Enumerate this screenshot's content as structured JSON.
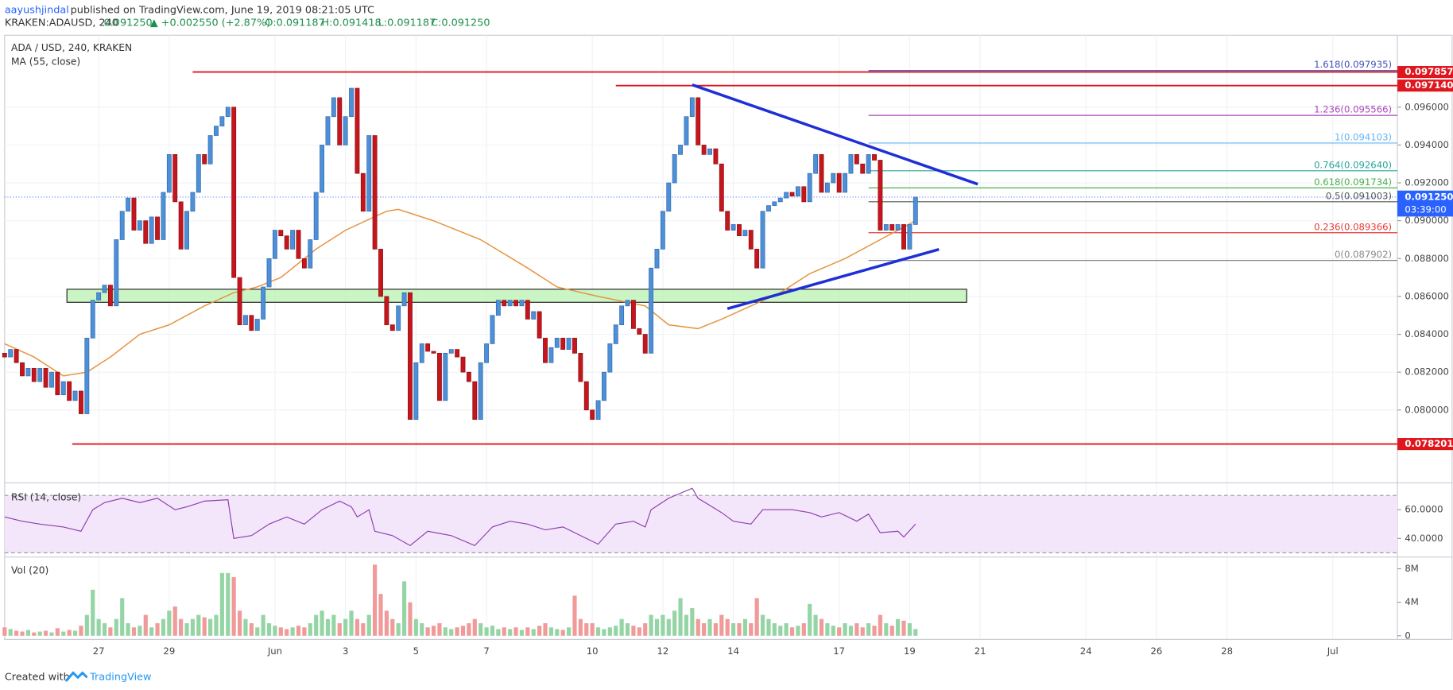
{
  "header": {
    "author": "aayushjindal",
    "published": "published on TradingView.com, June 19, 2019 08:21:05 UTC",
    "symbol": "KRAKEN:ADAUSD, 240",
    "price": "0.091250",
    "change": "▲ +0.002550 (+2.87%)",
    "open": "O:0.091187",
    "high": "H:0.091418",
    "low": "L:0.091187",
    "close": "C:0.091250"
  },
  "footer": {
    "created": "Created with",
    "brand": "TradingView"
  },
  "chart_data": {
    "type": "candlestick",
    "title": "ADA / USD, 240, KRAKEN",
    "up_color": "#4f8fd6",
    "down_color": "#c4161c",
    "x": [
      0,
      1,
      2,
      3,
      4,
      5,
      6,
      7,
      8,
      9,
      10,
      11,
      12,
      13,
      14,
      15,
      16,
      17,
      18,
      19,
      20,
      21,
      22,
      23,
      24,
      25,
      26,
      27,
      28,
      29,
      30,
      31,
      32,
      33,
      34,
      35,
      36,
      37,
      38,
      39,
      40,
      41,
      42,
      43,
      44,
      45,
      46,
      47,
      48,
      49,
      50,
      51,
      52,
      53,
      54,
      55,
      56,
      57,
      58,
      59,
      60,
      61,
      62,
      63,
      64,
      65,
      66,
      67,
      68,
      69,
      70,
      71,
      72,
      73,
      74,
      75,
      76,
      77,
      78,
      79,
      80,
      81,
      82,
      83,
      84,
      85,
      86,
      87,
      88,
      89,
      90,
      91,
      92,
      93,
      94,
      95,
      96,
      97,
      98,
      99,
      100,
      101,
      102,
      103,
      104,
      105,
      106,
      107,
      108,
      109,
      110,
      111,
      112,
      113,
      114,
      115,
      116,
      117,
      118,
      119,
      120,
      121,
      122,
      123,
      124,
      125,
      126,
      127,
      128,
      129,
      130,
      131,
      132,
      133,
      134,
      135,
      136,
      137,
      138,
      139,
      140,
      141,
      142,
      143,
      144,
      145,
      146,
      147,
      148,
      149,
      150,
      151,
      152,
      153,
      154,
      155
    ],
    "open": [
      0.083,
      0.0828,
      0.0832,
      0.0825,
      0.0818,
      0.0822,
      0.0815,
      0.0822,
      0.0812,
      0.082,
      0.0808,
      0.0815,
      0.0805,
      0.081,
      0.0798,
      0.0838,
      0.0858,
      0.0862,
      0.0866,
      0.0855,
      0.089,
      0.0905,
      0.0912,
      0.0895,
      0.09,
      0.0888,
      0.0902,
      0.089,
      0.0915,
      0.0935,
      0.091,
      0.0885,
      0.0905,
      0.0915,
      0.0935,
      0.093,
      0.0945,
      0.095,
      0.0955,
      0.096,
      0.087,
      0.0845,
      0.085,
      0.0842,
      0.0848,
      0.0865,
      0.088,
      0.0895,
      0.0892,
      0.0885,
      0.0895,
      0.088,
      0.0875,
      0.089,
      0.0915,
      0.094,
      0.0955,
      0.0965,
      0.094,
      0.0955,
      0.097,
      0.0925,
      0.0905,
      0.0945,
      0.0885,
      0.086,
      0.0845,
      0.0842,
      0.0855,
      0.0862,
      0.0795,
      0.0825,
      0.0835,
      0.0831,
      0.083,
      0.0805,
      0.083,
      0.0832,
      0.0828,
      0.082,
      0.0815,
      0.0795,
      0.0825,
      0.0835,
      0.085,
      0.0858,
      0.0855,
      0.0858,
      0.0855,
      0.0858,
      0.0848,
      0.0852,
      0.0838,
      0.0825,
      0.0833,
      0.0838,
      0.0832,
      0.0838,
      0.083,
      0.0815,
      0.08,
      0.0795,
      0.0805,
      0.082,
      0.0835,
      0.0845,
      0.0855,
      0.0858,
      0.0843,
      0.084,
      0.083,
      0.0875,
      0.0885,
      0.0905,
      0.092,
      0.0935,
      0.094,
      0.0955,
      0.0965,
      0.094,
      0.0935,
      0.0938,
      0.093,
      0.0905,
      0.0895,
      0.0898,
      0.0892,
      0.0895,
      0.0885,
      0.0875,
      0.0905,
      0.0908,
      0.091,
      0.0912,
      0.0915,
      0.0913,
      0.0918,
      0.091,
      0.0925,
      0.0935,
      0.0915,
      0.092,
      0.0925,
      0.0915,
      0.0925,
      0.0935,
      0.093,
      0.0925,
      0.0935,
      0.0932,
      0.0895,
      0.0898,
      0.0895,
      0.0898,
      0.0885,
      0.0898
    ],
    "close": [
      0.0828,
      0.0832,
      0.0825,
      0.0818,
      0.0822,
      0.0815,
      0.0822,
      0.0812,
      0.082,
      0.0808,
      0.0815,
      0.0805,
      0.081,
      0.0798,
      0.0838,
      0.0858,
      0.0862,
      0.0866,
      0.0855,
      0.089,
      0.0905,
      0.0912,
      0.0895,
      0.09,
      0.0888,
      0.0902,
      0.089,
      0.0915,
      0.0935,
      0.091,
      0.0885,
      0.0905,
      0.0915,
      0.0935,
      0.093,
      0.0945,
      0.095,
      0.0955,
      0.096,
      0.087,
      0.0845,
      0.085,
      0.0842,
      0.0848,
      0.0865,
      0.088,
      0.0895,
      0.0892,
      0.0885,
      0.0895,
      0.088,
      0.0875,
      0.089,
      0.0915,
      0.094,
      0.0955,
      0.0965,
      0.094,
      0.0955,
      0.097,
      0.0925,
      0.0905,
      0.0945,
      0.0885,
      0.086,
      0.0845,
      0.0842,
      0.0855,
      0.0862,
      0.0795,
      0.0825,
      0.0835,
      0.0831,
      0.083,
      0.0805,
      0.083,
      0.0832,
      0.0828,
      0.082,
      0.0815,
      0.0795,
      0.0825,
      0.0835,
      0.085,
      0.0858,
      0.0855,
      0.0858,
      0.0855,
      0.0858,
      0.0848,
      0.0852,
      0.0838,
      0.0825,
      0.0833,
      0.0838,
      0.0832,
      0.0838,
      0.083,
      0.0815,
      0.08,
      0.0795,
      0.0805,
      0.082,
      0.0835,
      0.0845,
      0.0855,
      0.0858,
      0.0843,
      0.084,
      0.083,
      0.0875,
      0.0885,
      0.0905,
      0.092,
      0.0935,
      0.094,
      0.0955,
      0.0965,
      0.094,
      0.0935,
      0.0938,
      0.093,
      0.0905,
      0.0895,
      0.0898,
      0.0892,
      0.0895,
      0.0885,
      0.0875,
      0.0905,
      0.0908,
      0.091,
      0.0912,
      0.0915,
      0.0913,
      0.0918,
      0.091,
      0.0925,
      0.0935,
      0.0915,
      0.092,
      0.0925,
      0.0915,
      0.0925,
      0.0935,
      0.093,
      0.0925,
      0.0935,
      0.0932,
      0.0895,
      0.0898,
      0.0895,
      0.0898,
      0.0885,
      0.0898,
      0.09125
    ],
    "xlim": [
      0,
      237
    ],
    "xticks": [
      {
        "value": 16,
        "label": "27"
      },
      {
        "value": 28,
        "label": "29"
      },
      {
        "value": 46,
        "label": "Jun"
      },
      {
        "value": 58,
        "label": "3"
      },
      {
        "value": 70,
        "label": "5"
      },
      {
        "value": 82,
        "label": "7"
      },
      {
        "value": 100,
        "label": "10"
      },
      {
        "value": 112,
        "label": "12"
      },
      {
        "value": 124,
        "label": "14"
      },
      {
        "value": 142,
        "label": "17"
      },
      {
        "value": 154,
        "label": "19"
      },
      {
        "value": 166,
        "label": "21"
      },
      {
        "value": 184,
        "label": "24"
      },
      {
        "value": 196,
        "label": "26"
      },
      {
        "value": 208,
        "label": "28"
      },
      {
        "value": 226,
        "label": "Jul"
      }
    ],
    "ylim": [
      0.0762,
      0.0998
    ],
    "yticks": [
      {
        "value": 0.08,
        "label": "0.080000"
      },
      {
        "value": 0.082,
        "label": "0.082000"
      },
      {
        "value": 0.084,
        "label": "0.084000"
      },
      {
        "value": 0.086,
        "label": "0.086000"
      },
      {
        "value": 0.088,
        "label": "0.088000"
      },
      {
        "value": 0.09,
        "label": "0.090000"
      },
      {
        "value": 0.092,
        "label": "0.092000"
      },
      {
        "value": 0.094,
        "label": "0.094000"
      },
      {
        "value": 0.096,
        "label": "0.096000"
      }
    ],
    "grid": true,
    "ma": {
      "name": "MA (55, close)",
      "color": "#e5953f",
      "x": [
        0,
        5,
        10,
        14,
        18,
        23,
        28,
        34,
        39,
        43,
        47,
        53,
        58,
        65,
        67,
        73,
        81,
        89,
        94,
        101,
        109,
        113,
        118,
        122,
        127,
        132,
        137,
        143,
        149,
        155
      ],
      "values": [
        0.0835,
        0.0828,
        0.0818,
        0.082,
        0.0828,
        0.084,
        0.0845,
        0.0855,
        0.0862,
        0.0865,
        0.087,
        0.0885,
        0.0895,
        0.0905,
        0.0906,
        0.09,
        0.089,
        0.0875,
        0.0865,
        0.086,
        0.0855,
        0.0845,
        0.0843,
        0.0848,
        0.0855,
        0.0862,
        0.0872,
        0.088,
        0.089,
        0.09
      ]
    },
    "levels": [
      {
        "value": 0.097857,
        "label": "0.097857",
        "x0": 32,
        "color": "#e0161e"
      },
      {
        "value": 0.09714,
        "label": "0.097140",
        "x0": 104,
        "color": "#e0161e"
      },
      {
        "value": 0.078201,
        "label": "0.078201",
        "x0": 11.5,
        "color": "#e0161e"
      }
    ],
    "fib": {
      "x0": 147,
      "levels": [
        {
          "value": 0.097935,
          "label": "1.618(0.097935)",
          "color": "#3f51b5"
        },
        {
          "value": 0.095566,
          "label": "1.236(0.095566)",
          "color": "#ab47bc"
        },
        {
          "value": 0.094103,
          "label": "1(0.094103)",
          "color": "#64b5f6"
        },
        {
          "value": 0.09264,
          "label": "0.764(0.092640)",
          "color": "#26a69a"
        },
        {
          "value": 0.091734,
          "label": "0.618(0.091734)",
          "color": "#4caf50"
        },
        {
          "value": 0.091003,
          "label": "0.5(0.091003)",
          "color": "#555555"
        },
        {
          "value": 0.089366,
          "label": "0.236(0.089366)",
          "color": "#e53935"
        },
        {
          "value": 0.087902,
          "label": "0(0.087902)",
          "color": "#888888"
        }
      ]
    },
    "trendlines": [
      {
        "x": [
          117,
          165.6
        ],
        "values": [
          0.09718,
          0.09193
        ],
        "color": "#1f2fd6"
      },
      {
        "x": [
          123,
          159
        ],
        "values": [
          0.08535,
          0.08849
        ],
        "color": "#1f2fd6"
      }
    ],
    "zone": {
      "x": [
        10.6,
        163.7
      ],
      "values": [
        0.08569,
        0.08638
      ],
      "color": "#b9f2b0"
    },
    "last_price": {
      "value": 0.09125,
      "label": "0.091250",
      "countdown": "03:39:00",
      "color": "#2962ff"
    },
    "rsi": {
      "name": "RSI (14, close)",
      "color": "#8e3fae",
      "band_color": "#f3e6fa",
      "bands": [
        30,
        70
      ],
      "x": [
        0,
        3,
        6,
        10,
        13,
        15,
        17,
        20,
        23,
        26,
        29,
        31,
        34,
        38,
        39,
        42,
        45,
        48,
        51,
        54,
        57,
        59,
        60,
        62,
        63,
        66,
        69,
        72,
        76,
        80,
        83,
        86,
        89,
        92,
        95,
        99,
        101,
        104,
        107,
        109,
        110,
        113,
        117,
        118,
        122,
        124,
        127,
        129,
        134,
        137,
        139,
        142,
        145,
        147,
        149,
        152,
        153,
        155
      ],
      "values": [
        55,
        52,
        50,
        48,
        45,
        60,
        65,
        68,
        65,
        68,
        60,
        62,
        66,
        67,
        40,
        42,
        50,
        55,
        50,
        60,
        66,
        62,
        55,
        60,
        45,
        42,
        35,
        45,
        42,
        35,
        48,
        52,
        50,
        46,
        48,
        40,
        36,
        50,
        52,
        48,
        60,
        68,
        75,
        68,
        58,
        52,
        50,
        60,
        60,
        58,
        55,
        58,
        52,
        57,
        44,
        45,
        41,
        50
      ],
      "ylim": [
        27.7,
        78.1
      ],
      "yticks": [
        {
          "value": 40,
          "label": "40.0000"
        },
        {
          "value": 60,
          "label": "60.0000"
        }
      ]
    },
    "volume": {
      "name": "Vol (20)",
      "up_color": "#95d5a5",
      "down_color": "#f09a9a",
      "values": [
        1000000,
        800000,
        600000,
        500000,
        700000,
        400000,
        500000,
        600000,
        400000,
        900000,
        500000,
        700000,
        600000,
        1200000,
        2500000,
        5500000,
        2000000,
        1500000,
        1000000,
        2000000,
        4500000,
        1500000,
        1000000,
        1200000,
        2500000,
        1000000,
        1500000,
        2000000,
        3000000,
        3500000,
        2000000,
        1500000,
        2000000,
        2500000,
        2200000,
        2000000,
        2500000,
        7500000,
        7500000,
        7000000,
        3000000,
        2000000,
        1500000,
        1000000,
        2500000,
        1500000,
        1200000,
        1000000,
        800000,
        1000000,
        1200000,
        1000000,
        1500000,
        2500000,
        3000000,
        2000000,
        2500000,
        1500000,
        2000000,
        3000000,
        2000000,
        1500000,
        2500000,
        8500000,
        5000000,
        3000000,
        2000000,
        1500000,
        6500000,
        4000000,
        2000000,
        1500000,
        1000000,
        1200000,
        1500000,
        1000000,
        800000,
        1000000,
        1200000,
        1500000,
        2000000,
        1500000,
        1000000,
        1200000,
        800000,
        1000000,
        800000,
        1000000,
        700000,
        1000000,
        800000,
        1200000,
        1500000,
        1000000,
        800000,
        700000,
        1000000,
        4800000,
        2000000,
        1500000,
        1500000,
        1000000,
        800000,
        1000000,
        1200000,
        2000000,
        1500000,
        1200000,
        1000000,
        1500000,
        2500000,
        2000000,
        2500000,
        2000000,
        3000000,
        4500000,
        2500000,
        3300000,
        2000000,
        1500000,
        2000000,
        1500000,
        2500000,
        2000000,
        1500000,
        1500000,
        2000000,
        1500000,
        4500000,
        2500000,
        2000000,
        1500000,
        1200000,
        1500000,
        1000000,
        1200000,
        1500000,
        3800000,
        2500000,
        2000000,
        1500000,
        1200000,
        1000000,
        1500000,
        1200000,
        1500000,
        1000000,
        1500000,
        1200000,
        2500000,
        1500000,
        1200000,
        2000000,
        1800000,
        1500000,
        800000
      ],
      "ylim": [
        0,
        9300000
      ],
      "yticks": [
        {
          "value": 0,
          "label": "0"
        },
        {
          "value": 4000000,
          "label": "4M"
        },
        {
          "value": 8000000,
          "label": "8M"
        }
      ]
    }
  }
}
